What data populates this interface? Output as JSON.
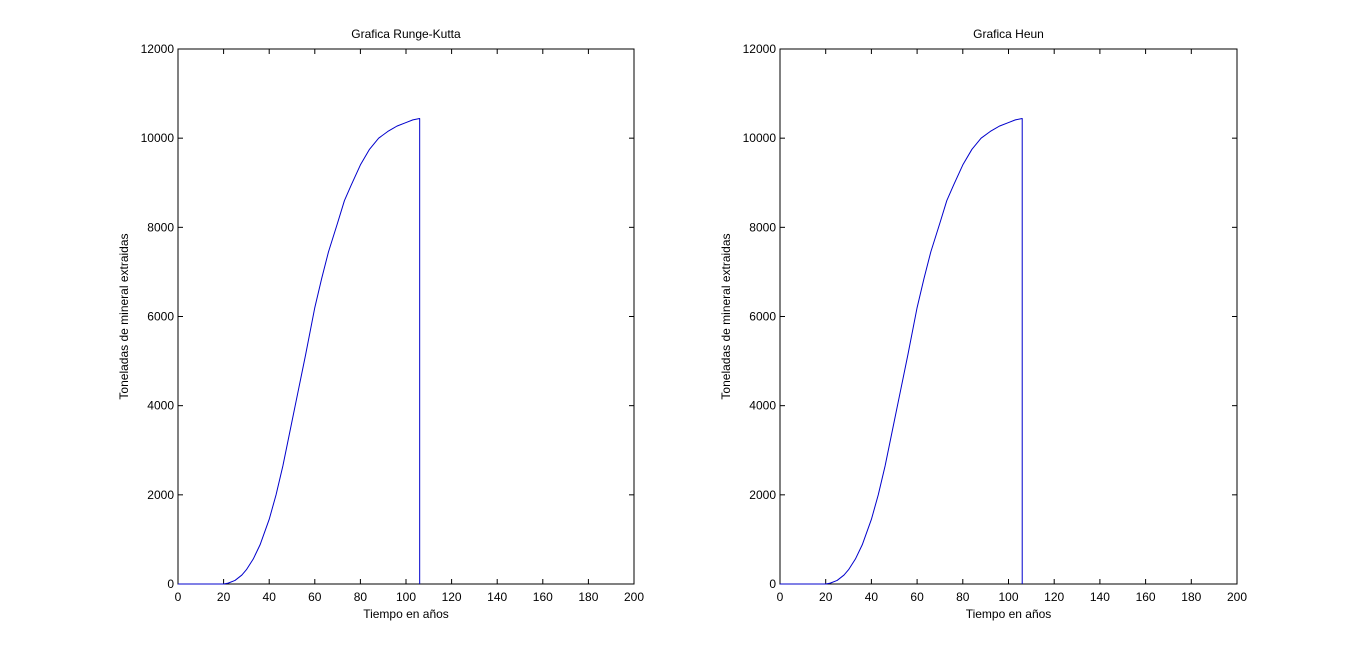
{
  "chart_data": [
    {
      "type": "line",
      "title": "Grafica Runge-Kutta",
      "xlabel": "Tiempo en años",
      "ylabel": "Toneladas de mineral extraidas",
      "xlim": [
        0,
        200
      ],
      "ylim": [
        0,
        12000
      ],
      "xticks": [
        0,
        20,
        40,
        60,
        80,
        100,
        120,
        140,
        160,
        180,
        200
      ],
      "yticks": [
        0,
        2000,
        4000,
        6000,
        8000,
        10000,
        12000
      ],
      "grid": false,
      "series": [
        {
          "color": "#0000cc",
          "x": [
            0,
            20,
            22,
            25,
            28,
            30,
            33,
            36,
            40,
            43,
            46,
            50,
            53,
            56,
            60,
            63,
            66,
            70,
            73,
            76,
            80,
            84,
            88,
            92,
            96,
            100,
            103,
            106,
            106
          ],
          "y": [
            0,
            0,
            20,
            80,
            200,
            320,
            560,
            880,
            1450,
            2000,
            2650,
            3650,
            4400,
            5150,
            6200,
            6850,
            7450,
            8100,
            8600,
            8950,
            9400,
            9750,
            10000,
            10150,
            10270,
            10350,
            10410,
            10440,
            0
          ]
        }
      ]
    },
    {
      "type": "line",
      "title": "Grafica Heun",
      "xlabel": "Tiempo en años",
      "ylabel": "Toneladas de mineral extraidas",
      "xlim": [
        0,
        200
      ],
      "ylim": [
        0,
        12000
      ],
      "xticks": [
        0,
        20,
        40,
        60,
        80,
        100,
        120,
        140,
        160,
        180,
        200
      ],
      "yticks": [
        0,
        2000,
        4000,
        6000,
        8000,
        10000,
        12000
      ],
      "grid": false,
      "series": [
        {
          "color": "#0000cc",
          "x": [
            0,
            20,
            22,
            25,
            28,
            30,
            33,
            36,
            40,
            43,
            46,
            50,
            53,
            56,
            60,
            63,
            66,
            70,
            73,
            76,
            80,
            84,
            88,
            92,
            96,
            100,
            103,
            106,
            106
          ],
          "y": [
            0,
            0,
            20,
            80,
            200,
            320,
            560,
            880,
            1450,
            2000,
            2650,
            3650,
            4400,
            5150,
            6200,
            6850,
            7450,
            8100,
            8600,
            8950,
            9400,
            9750,
            10000,
            10150,
            10270,
            10350,
            10410,
            10440,
            0
          ]
        }
      ]
    }
  ]
}
